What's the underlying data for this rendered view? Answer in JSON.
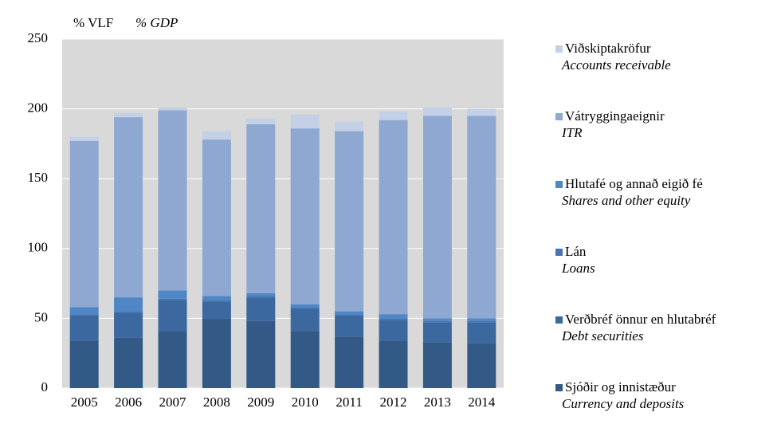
{
  "chart_data": {
    "type": "stacked-bar",
    "y_label": "% VLF",
    "y_label_en": "% GDP",
    "categories": [
      "2005",
      "2006",
      "2007",
      "2008",
      "2009",
      "2010",
      "2011",
      "2012",
      "2013",
      "2014"
    ],
    "series": [
      {
        "name": "Sjóðir og innistæður",
        "name_en": "Currency and deposits",
        "color": "#335a87",
        "values": [
          34,
          36,
          41,
          50,
          48,
          41,
          37,
          34,
          33,
          32
        ]
      },
      {
        "name": "Verðbréf önnur en hlutabréf",
        "name_en": "Debt securities",
        "color": "#3c68a0",
        "values": [
          18,
          18,
          22,
          12,
          17,
          16,
          15,
          15,
          14,
          15
        ]
      },
      {
        "name": "Lán",
        "name_en": "Loans",
        "color": "#4574b2",
        "values": [
          1,
          1,
          1,
          1,
          1,
          1,
          1,
          1,
          1,
          1
        ]
      },
      {
        "name": "Hlutafé og annað eigið fé",
        "name_en": "Shares and other equity",
        "color": "#4f86c6",
        "values": [
          5,
          10,
          6,
          3,
          2,
          2,
          2,
          3,
          2,
          2
        ]
      },
      {
        "name": "Vátryggingaeignir",
        "name_en": "ITR",
        "color": "#8ea8d2",
        "values": [
          119,
          129,
          129,
          112,
          121,
          126,
          129,
          139,
          145,
          145
        ]
      },
      {
        "name": "Viðskiptakröfur",
        "name_en": "Accounts receivable",
        "color": "#c3d0e6",
        "values": [
          3,
          3,
          2,
          6,
          4,
          10,
          7,
          6,
          6,
          5
        ]
      }
    ],
    "ylim": [
      0,
      250
    ],
    "yticks": [
      0,
      50,
      100,
      150,
      200,
      250
    ],
    "grid": true,
    "legend": "right"
  }
}
